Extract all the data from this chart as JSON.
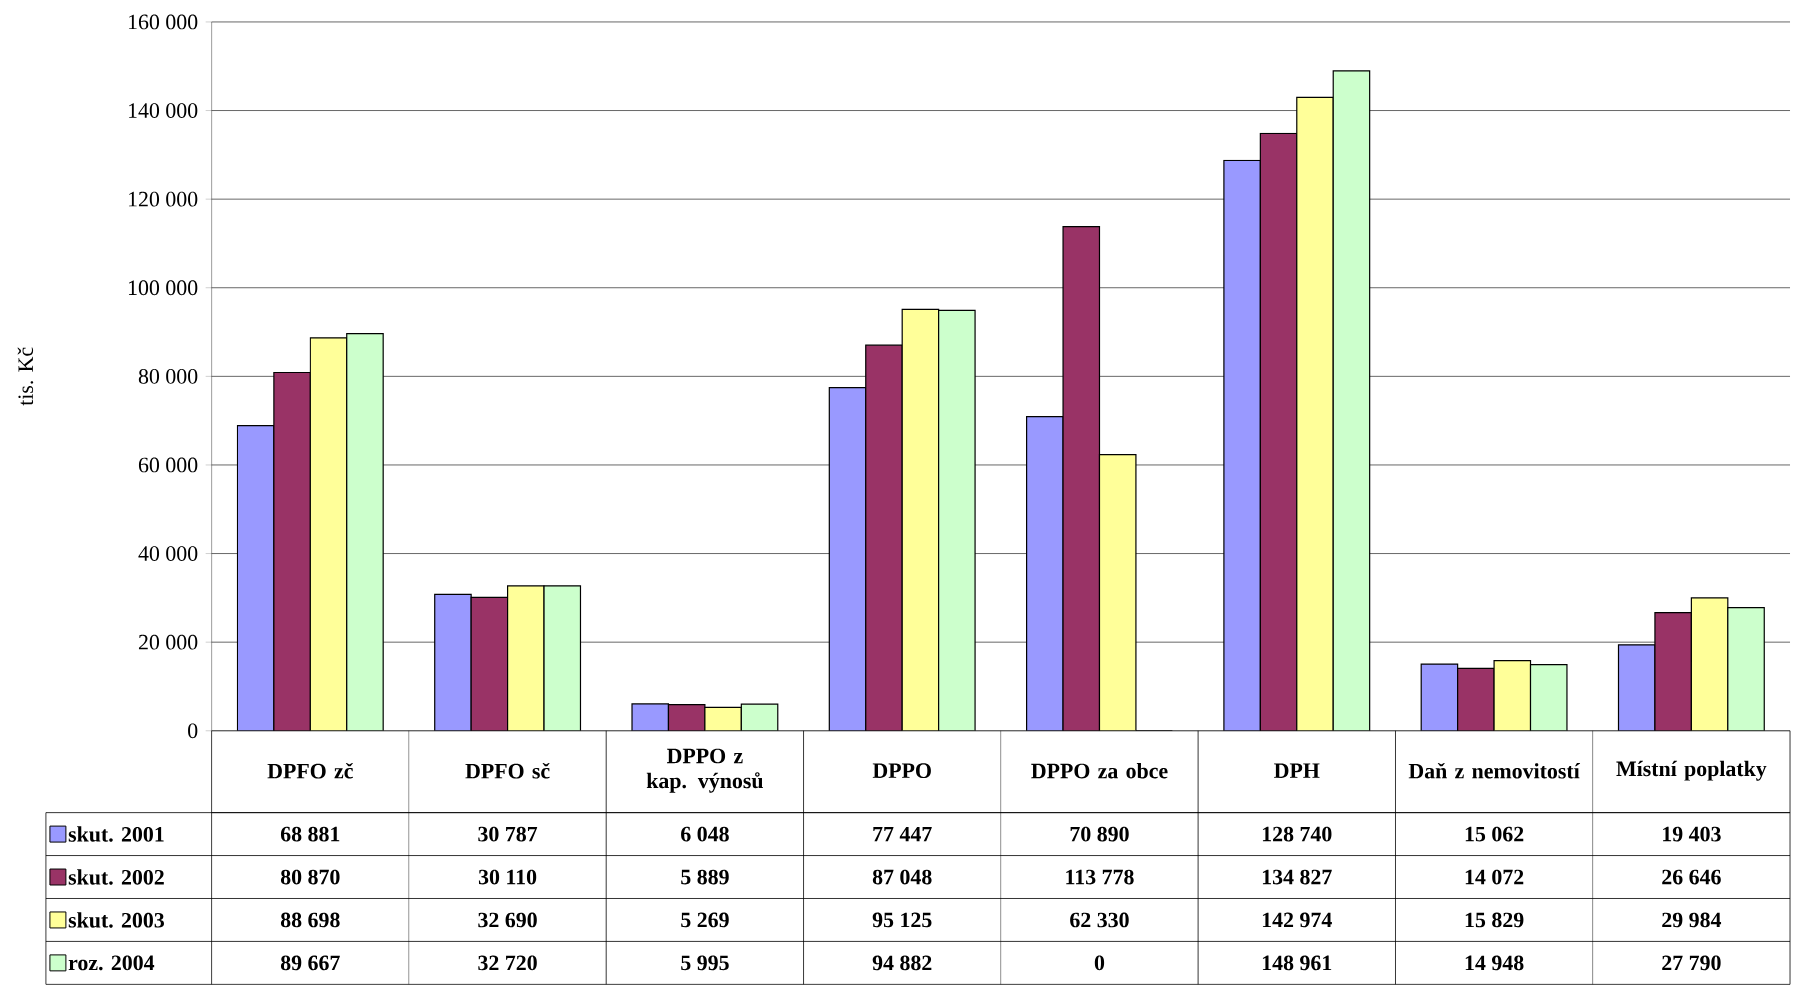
{
  "chart_data": {
    "type": "bar",
    "ylabel": "tis. Kč",
    "categories": [
      "DPFO zč",
      "DPFO sč",
      "DPPO z kap. výnosů",
      "DPPO",
      "DPPO za obce",
      "DPH",
      "Daň z nemovitostí",
      "Místní poplatky"
    ],
    "series": [
      {
        "name": "skut. 2001",
        "color": "#9999ff",
        "values": [
          68881,
          30787,
          6048,
          77447,
          70890,
          128740,
          15062,
          19403
        ],
        "value_labels": [
          "68 881",
          "30 787",
          "6 048",
          "77 447",
          "70 890",
          "128 740",
          "15 062",
          "19 403"
        ]
      },
      {
        "name": "skut. 2002",
        "color": "#993366",
        "values": [
          80870,
          30110,
          5889,
          87048,
          113778,
          134827,
          14072,
          26646
        ],
        "value_labels": [
          "80 870",
          "30 110",
          "5 889",
          "87 048",
          "113 778",
          "134 827",
          "14 072",
          "26 646"
        ]
      },
      {
        "name": "skut. 2003",
        "color": "#ffff99",
        "values": [
          88698,
          32690,
          5269,
          95125,
          62330,
          142974,
          15829,
          29984
        ],
        "value_labels": [
          "88 698",
          "32 690",
          "5 269",
          "95 125",
          "62 330",
          "142 974",
          "15 829",
          "29 984"
        ]
      },
      {
        "name": "roz. 2004",
        "color": "#ccffcc",
        "values": [
          89667,
          32720,
          5995,
          94882,
          0,
          148961,
          14948,
          27790
        ],
        "value_labels": [
          "89 667",
          "32 720",
          "5 995",
          "94 882",
          "0",
          "148 961",
          "14 948",
          "27 790"
        ]
      }
    ],
    "ylim": [
      0,
      160000
    ],
    "yticks": [
      {
        "value": 0,
        "label": "0"
      },
      {
        "value": 20000,
        "label": "20 000"
      },
      {
        "value": 40000,
        "label": "40 000"
      },
      {
        "value": 60000,
        "label": "60 000"
      },
      {
        "value": 80000,
        "label": "80 000"
      },
      {
        "value": 100000,
        "label": "100 000"
      },
      {
        "value": 120000,
        "label": "120 000"
      },
      {
        "value": 140000,
        "label": "140 000"
      },
      {
        "value": 160000,
        "label": "160 000"
      }
    ],
    "grid": "y",
    "legend": "bottom left"
  }
}
